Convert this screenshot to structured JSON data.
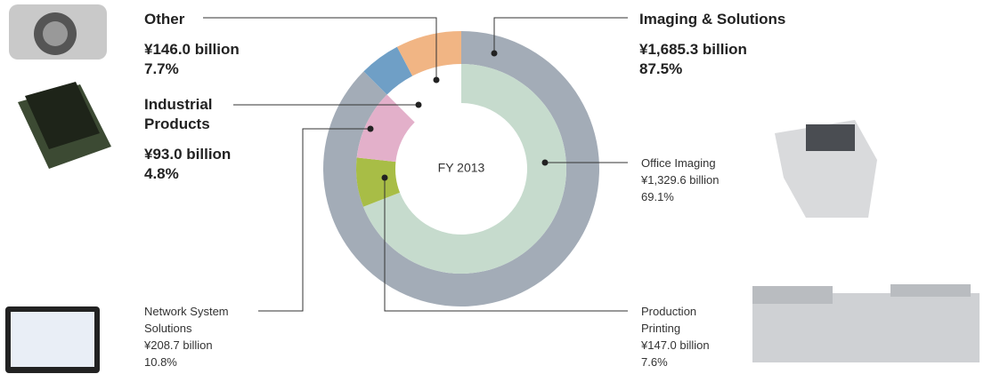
{
  "chart_data": {
    "type": "donut",
    "center_label": "FY 2013",
    "rings": [
      {
        "categories": [
          "Imaging & Solutions",
          "Industrial Products",
          "Other"
        ],
        "values": [
          87.5,
          4.8,
          7.7
        ],
        "value_labels": [
          "87.5%",
          "4.8%",
          "7.7%"
        ],
        "amount_labels": [
          "¥1,685.3 billion",
          "¥93.0 billion",
          "¥146.0 billion"
        ],
        "colors": [
          "#a3acb7",
          "#6f9fc6",
          "#f1b584"
        ]
      },
      {
        "categories": [
          "Office Imaging",
          "Production Printing",
          "Network System Solutions"
        ],
        "values": [
          69.1,
          7.6,
          10.8
        ],
        "value_labels": [
          "69.1%",
          "7.6%",
          "10.8%"
        ],
        "amount_labels": [
          "¥1,329.6 billion",
          "¥147.0 billion",
          "¥208.7 billion"
        ],
        "colors": [
          "#c6dbcd",
          "#a8bd46",
          "#e3b0ca"
        ]
      }
    ]
  }
}
